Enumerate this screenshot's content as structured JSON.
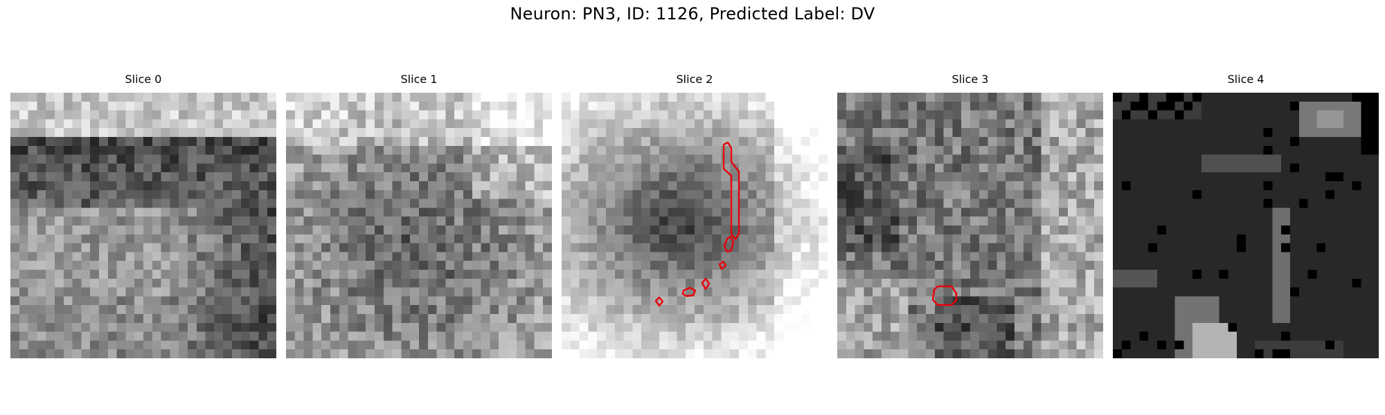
{
  "figure": {
    "title": "Neuron: PN3, ID: 1126, Predicted Label: DV"
  },
  "colors": {
    "background": "#ffffff",
    "contour": "#e8000b",
    "colormap": "gray"
  },
  "panels": [
    {
      "title": "Slice 0",
      "contours": 0
    },
    {
      "title": "Slice 1",
      "contours": 0
    },
    {
      "title": "Slice 2",
      "contours": 6
    },
    {
      "title": "Slice 3",
      "contours": 1
    },
    {
      "title": "Slice 4",
      "contours": 0
    }
  ]
}
